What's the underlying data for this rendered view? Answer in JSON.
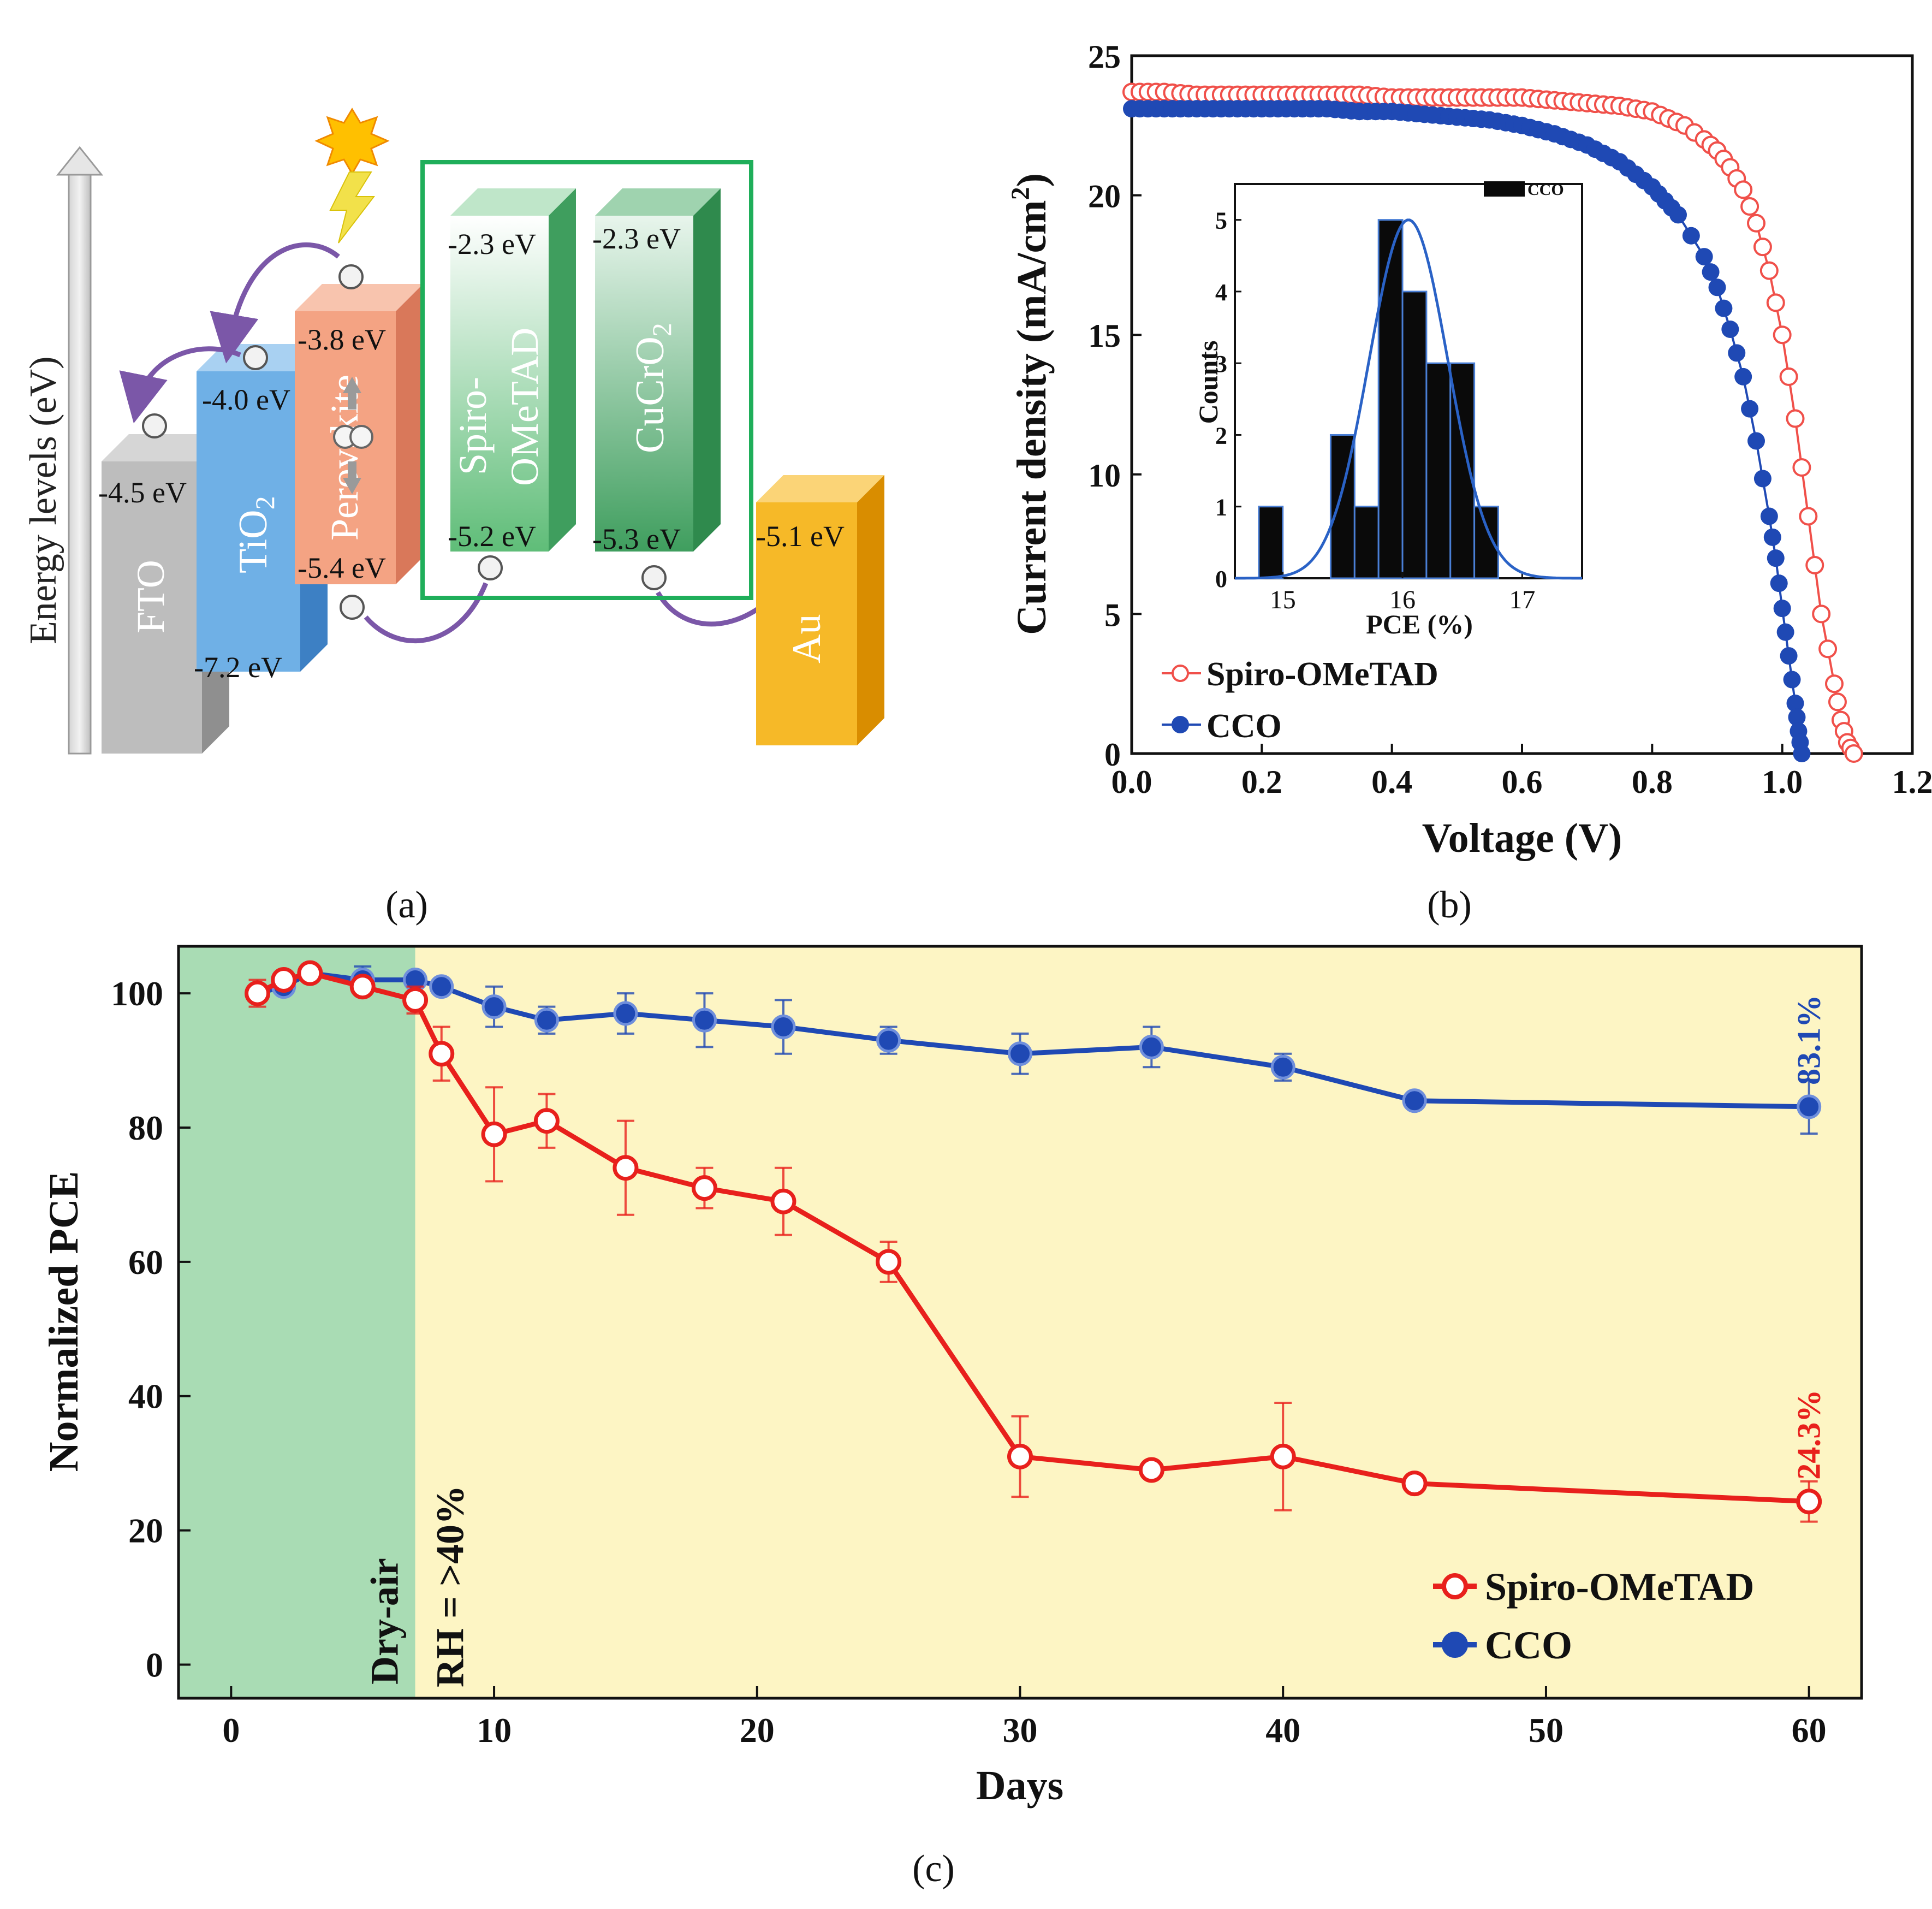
{
  "panel_a": {
    "label": "(a)",
    "axis_label": "Energy levels (eV)",
    "blocks": [
      {
        "name": "FTO",
        "top_label": "-4.5 eV",
        "bottom_label": "",
        "color": "#bdbdbd"
      },
      {
        "name": "TiO",
        "subscript": "2",
        "top_label": "-4.0 eV",
        "bottom_label": "-7.2 eV",
        "color": "#6fb0e6"
      },
      {
        "name": "Perovskite",
        "top_label": "-3.8 eV",
        "bottom_label": "-5.4 eV",
        "color": "#f4a383"
      },
      {
        "name": "Spiro-\nOMeTAD",
        "line1": "Spiro-",
        "line2": "OMeTAD",
        "top_label": "-2.3 eV",
        "bottom_label": "-5.2 eV",
        "color": "#6cc48a"
      },
      {
        "name": "CuCrO",
        "subscript": "2",
        "top_label": "-2.3 eV",
        "bottom_label": "-5.3 eV",
        "color": "#4caa68"
      },
      {
        "name": "Au",
        "top_label": "-5.1 eV",
        "bottom_label": "",
        "color": "#f6b928"
      }
    ]
  },
  "panel_b_label": "(b)",
  "panel_c_label": "(c)",
  "chart_data": [
    {
      "id": "b",
      "type": "line",
      "title": "",
      "xlabel": "Voltage (V)",
      "ylabel": "Current density (mA/cm",
      "ylabel_sup": "2",
      "ylabel_close": ")",
      "xlim": [
        0.0,
        1.2
      ],
      "ylim": [
        0,
        25
      ],
      "xticks": [
        "0.0",
        "0.2",
        "0.4",
        "0.6",
        "0.8",
        "1.0",
        "1.2"
      ],
      "yticks": [
        "0",
        "5",
        "10",
        "15",
        "20",
        "25"
      ],
      "legend": [
        "Spiro-OMeTAD",
        "CCO"
      ],
      "series": [
        {
          "name": "Spiro-OMeTAD",
          "color": "#f0504a",
          "marker": "open-circle",
          "x": [
            0.0,
            0.05,
            0.1,
            0.15,
            0.2,
            0.25,
            0.3,
            0.35,
            0.4,
            0.45,
            0.5,
            0.55,
            0.6,
            0.65,
            0.7,
            0.75,
            0.8,
            0.85,
            0.88,
            0.9,
            0.92,
            0.94,
            0.96,
            0.98,
            1.0,
            1.02,
            1.04,
            1.06,
            1.08,
            1.09,
            1.1,
            1.11
          ],
          "y": [
            23.7,
            23.7,
            23.6,
            23.6,
            23.6,
            23.6,
            23.6,
            23.6,
            23.5,
            23.5,
            23.5,
            23.5,
            23.5,
            23.4,
            23.3,
            23.2,
            23.0,
            22.5,
            22.0,
            21.6,
            21.0,
            20.2,
            19.0,
            17.3,
            15.0,
            12.0,
            8.5,
            5.0,
            2.5,
            1.2,
            0.4,
            0.0
          ]
        },
        {
          "name": "CCO",
          "color": "#1f49b4",
          "marker": "filled-circle",
          "x": [
            0.0,
            0.05,
            0.1,
            0.15,
            0.2,
            0.25,
            0.3,
            0.35,
            0.4,
            0.45,
            0.5,
            0.55,
            0.6,
            0.65,
            0.7,
            0.75,
            0.8,
            0.84,
            0.88,
            0.9,
            0.92,
            0.94,
            0.96,
            0.98,
            0.99,
            1.0,
            1.01,
            1.02,
            1.025,
            1.03
          ],
          "y": [
            23.1,
            23.1,
            23.1,
            23.1,
            23.1,
            23.1,
            23.1,
            23.0,
            23.0,
            22.9,
            22.8,
            22.7,
            22.5,
            22.2,
            21.8,
            21.2,
            20.3,
            19.3,
            17.8,
            16.7,
            15.2,
            13.5,
            11.2,
            8.5,
            7.0,
            5.2,
            3.5,
            1.8,
            0.8,
            0.0
          ]
        }
      ],
      "inset": {
        "type": "bar",
        "xlabel": "PCE (%)",
        "ylabel": "Counts",
        "xlim": [
          14.6,
          17.5
        ],
        "ylim": [
          0,
          5.5
        ],
        "xticks": [
          "15",
          "16",
          "17"
        ],
        "yticks": [
          "0",
          "1",
          "2",
          "3",
          "4",
          "5"
        ],
        "legend": "CCO",
        "bin_width": 0.2,
        "bin_starts": [
          14.8,
          15.4,
          15.6,
          15.8,
          16.0,
          16.2,
          16.4,
          16.6
        ],
        "counts": [
          1,
          2,
          1,
          5,
          4,
          3,
          3,
          1
        ],
        "fit_mean": 16.05,
        "fit_sigma": 0.33,
        "fit_peak": 5.0
      }
    },
    {
      "id": "c",
      "type": "line",
      "title": "",
      "xlabel": "Days",
      "ylabel": "Normalized PCE",
      "xlim": [
        -2,
        62
      ],
      "ylim": [
        -5,
        107
      ],
      "xticks": [
        0,
        10,
        20,
        30,
        40,
        50,
        60
      ],
      "yticks": [
        0,
        20,
        40,
        60,
        80,
        100
      ],
      "regions": [
        {
          "label": "Dry-air",
          "from": -2,
          "to": 7,
          "color": "#a9dcb4"
        },
        {
          "label": "RH = >40%",
          "from": 7,
          "to": 62,
          "color": "#fdf5c4"
        }
      ],
      "legend": [
        "Spiro-OMeTAD",
        "CCO"
      ],
      "series": [
        {
          "name": "Spiro-OMeTAD",
          "color": "#e8201c",
          "x": [
            1,
            2,
            3,
            5,
            7,
            8,
            10,
            12,
            15,
            18,
            21,
            25,
            30,
            35,
            40,
            45,
            60
          ],
          "y": [
            100,
            102,
            103,
            101,
            99,
            91,
            79,
            81,
            74,
            71,
            69,
            60,
            31,
            29,
            31,
            27,
            24.3
          ],
          "err": [
            2,
            1,
            1,
            1,
            2,
            4,
            7,
            4,
            7,
            3,
            5,
            3,
            6,
            1,
            8,
            1,
            3
          ],
          "end_label": "24.3%"
        },
        {
          "name": "CCO",
          "color": "#1f49b4",
          "x": [
            1,
            2,
            3,
            5,
            7,
            8,
            10,
            12,
            15,
            18,
            21,
            25,
            30,
            35,
            40,
            45,
            60
          ],
          "y": [
            100,
            101,
            103,
            102,
            102,
            101,
            98,
            96,
            97,
            96,
            95,
            93,
            91,
            92,
            89,
            84,
            83.1
          ],
          "err": [
            1,
            1,
            1,
            2,
            1,
            1,
            3,
            2,
            3,
            4,
            4,
            2,
            3,
            3,
            2,
            1,
            4
          ],
          "end_label": "83.1%"
        }
      ]
    }
  ]
}
